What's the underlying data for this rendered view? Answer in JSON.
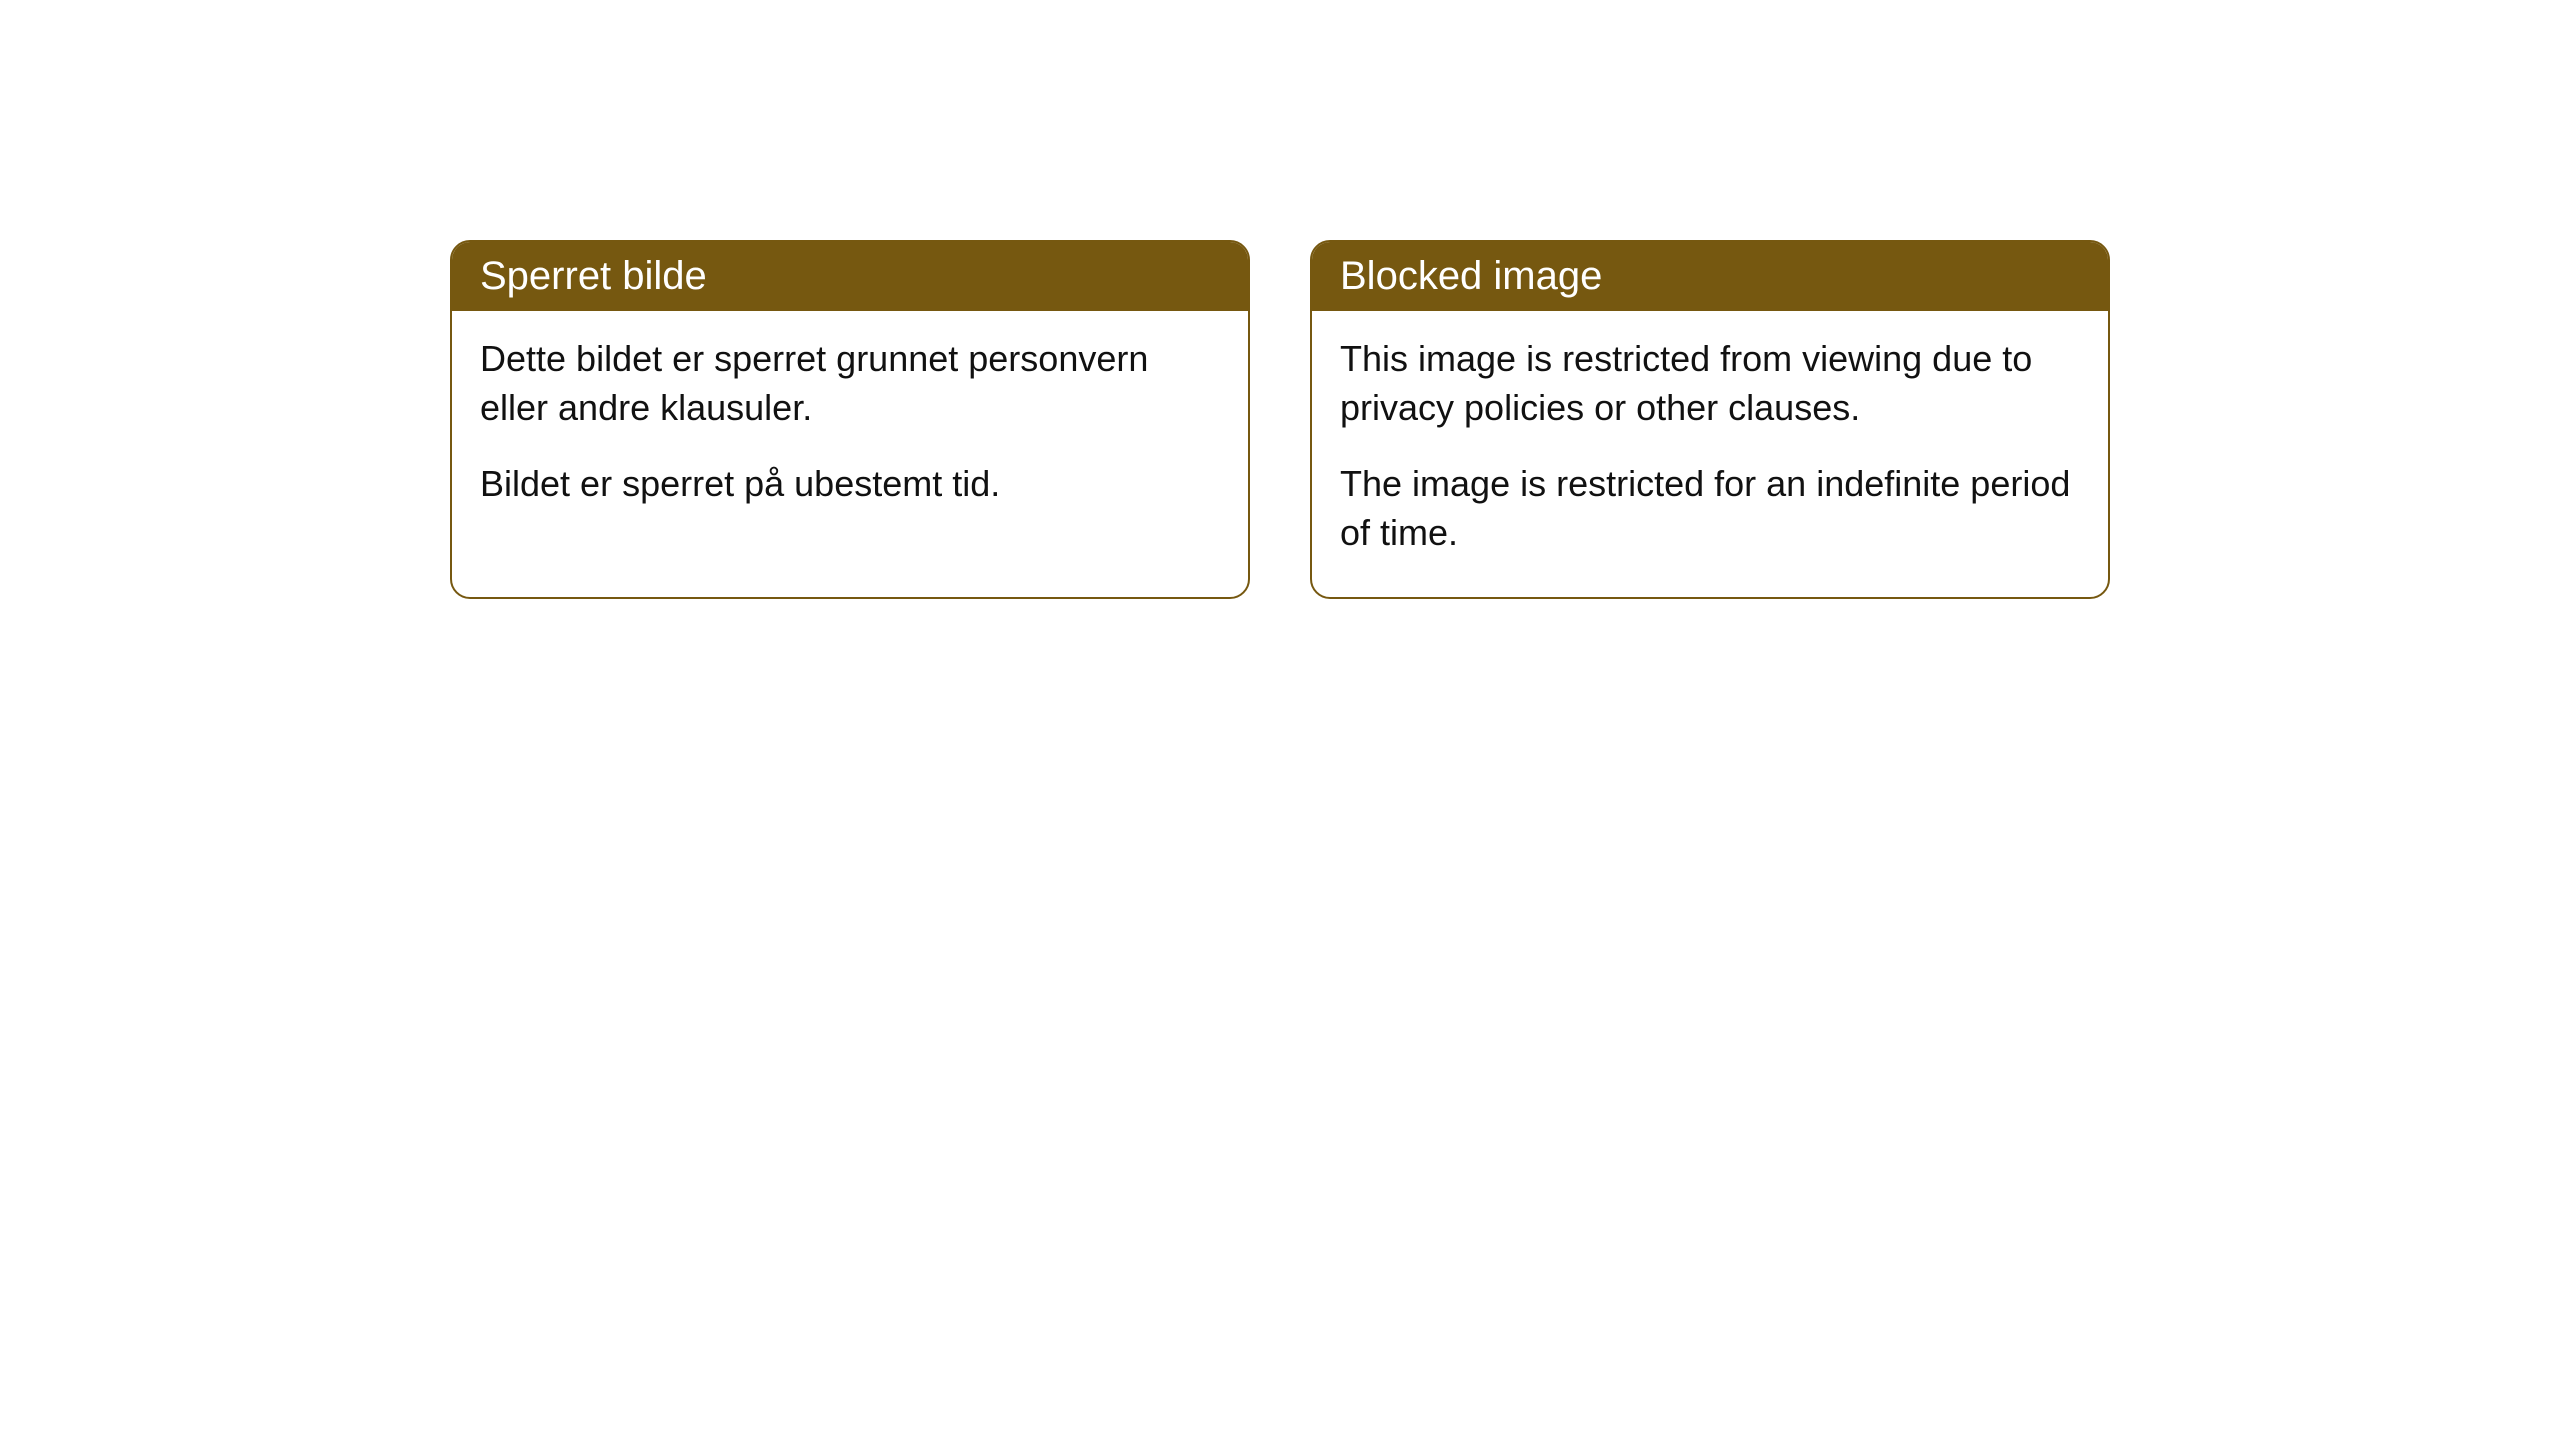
{
  "cards": [
    {
      "title": "Sperret bilde",
      "paragraph1": "Dette bildet er sperret grunnet personvern eller andre klausuler.",
      "paragraph2": "Bildet er sperret på ubestemt tid."
    },
    {
      "title": "Blocked image",
      "paragraph1": "This image is restricted from viewing due to privacy policies or other clauses.",
      "paragraph2": "The image is restricted for an indefinite period of time."
    }
  ],
  "style": {
    "header_bg": "#765810",
    "header_text_color": "#ffffff",
    "border_color": "#765810",
    "body_text_color": "#111111",
    "background_color": "#ffffff",
    "border_radius": 20,
    "title_fontsize": 40,
    "body_fontsize": 36
  }
}
